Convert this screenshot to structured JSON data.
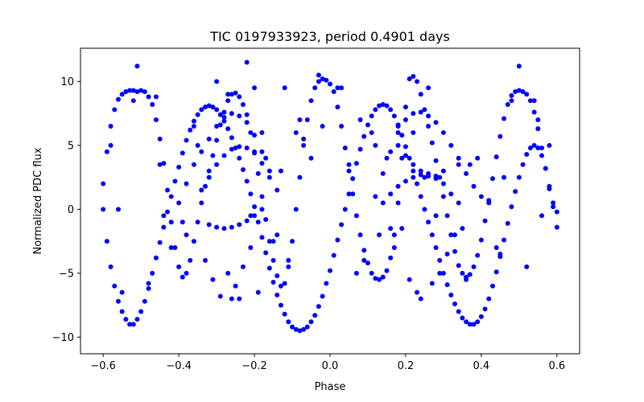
{
  "chart_data": {
    "type": "scatter",
    "title": "TIC 0197933923, period 0.4901 days",
    "xlabel": "Phase",
    "ylabel": "Normalized PDC flux",
    "xlim": [
      -0.66,
      0.66
    ],
    "ylim": [
      -11.3,
      12.6
    ],
    "xticks": [
      -0.6,
      -0.4,
      -0.2,
      0.0,
      0.2,
      0.4,
      0.6
    ],
    "xtick_labels": [
      "−0.6",
      "−0.4",
      "−0.2",
      "0.0",
      "0.2",
      "0.4",
      "0.6"
    ],
    "yticks": [
      -10,
      -5,
      0,
      5,
      10
    ],
    "ytick_labels": [
      "−10",
      "−5",
      "0",
      "5",
      "10"
    ],
    "grid": false,
    "marker_color": "#0000ff",
    "series": [
      {
        "x": [
          -0.6,
          -0.59,
          -0.58,
          -0.57,
          -0.56,
          -0.55,
          -0.54,
          -0.53,
          -0.52,
          -0.51,
          -0.5,
          -0.49,
          -0.48,
          -0.47,
          -0.46,
          -0.45,
          -0.44,
          -0.43,
          -0.42,
          -0.41,
          -0.4,
          -0.39,
          -0.38,
          -0.37,
          -0.36,
          -0.35,
          -0.34,
          -0.33,
          -0.32,
          -0.31,
          -0.3,
          -0.29,
          -0.28,
          -0.27,
          -0.26,
          -0.25,
          -0.24,
          -0.23,
          -0.22,
          -0.21,
          -0.2,
          -0.19,
          -0.18,
          -0.17,
          -0.16,
          -0.15,
          -0.14,
          -0.13,
          -0.12,
          -0.11,
          -0.1,
          -0.09,
          -0.08,
          -0.07,
          -0.06,
          -0.05,
          -0.04,
          -0.03,
          -0.02,
          -0.01,
          0.0,
          0.01,
          0.02,
          0.03,
          0.04,
          0.05,
          0.06,
          0.07,
          0.08,
          0.09,
          0.1,
          0.11,
          0.12,
          0.13,
          0.14,
          0.15,
          0.16,
          0.17,
          0.18,
          0.19,
          0.2,
          0.21,
          0.22,
          0.23,
          0.24,
          0.25,
          0.26,
          0.27,
          0.28,
          0.29,
          0.3,
          0.31,
          0.32,
          0.33,
          0.34,
          0.35,
          0.36,
          0.37,
          0.38,
          0.39,
          0.4,
          0.41,
          0.42,
          0.43,
          0.44,
          0.45,
          0.46,
          0.47,
          0.48,
          0.49,
          0.5,
          0.51,
          0.52,
          0.53,
          0.54,
          0.55,
          0.56,
          0.57,
          0.58,
          0.59,
          0.6
        ],
        "y": [
          2.0,
          4.5,
          6.5,
          7.8,
          8.6,
          9.0,
          9.2,
          9.3,
          9.3,
          9.2,
          9.3,
          9.2,
          8.8,
          8.2,
          7.0,
          5.5,
          3.6,
          1.5,
          -1.0,
          -3.0,
          -4.5,
          -5.3,
          -5.0,
          -4.0,
          -2.5,
          -1.0,
          0.5,
          1.8,
          3.0,
          4.2,
          5.4,
          6.6,
          7.6,
          8.5,
          9.0,
          9.1,
          8.8,
          8.2,
          7.4,
          6.0,
          4.5,
          2.8,
          1.0,
          -0.8,
          -2.5,
          -4.0,
          -5.2,
          -6.0,
          -5.8,
          -4.5,
          -2.5,
          0.0,
          2.5,
          5.0,
          7.0,
          8.5,
          9.5,
          10.0,
          10.2,
          10.1,
          9.8,
          9.2,
          8.0,
          6.5,
          4.8,
          3.0,
          1.2,
          -0.5,
          -2.0,
          -3.2,
          -4.2,
          -5.0,
          -5.4,
          -5.5,
          -5.3,
          -4.8,
          -3.8,
          -2.0,
          0.5,
          4.0,
          8.0,
          10.2,
          10.4,
          10.0,
          9.0,
          7.8,
          6.5,
          5.2,
          3.8,
          2.5,
          1.0,
          -0.5,
          -2.0,
          -3.3,
          -4.4,
          -5.0,
          -5.3,
          -5.1,
          -4.5,
          -3.6,
          -2.4,
          -0.9,
          0.7,
          2.4,
          4.1,
          5.7,
          7.1,
          8.2,
          8.9,
          9.2,
          9.3,
          9.2,
          9.0,
          8.5,
          7.6,
          6.3,
          4.8,
          3.2,
          1.6,
          0.5,
          -0.2
        ]
      },
      {
        "x": [
          -0.6,
          -0.59,
          -0.58,
          -0.57,
          -0.56,
          -0.55,
          -0.54,
          -0.53,
          -0.52,
          -0.51,
          -0.5,
          -0.49,
          -0.48,
          -0.47,
          -0.46,
          -0.45,
          -0.44,
          -0.43,
          -0.42,
          -0.41,
          -0.4,
          -0.39,
          -0.38,
          -0.37,
          -0.36,
          -0.35,
          -0.34,
          -0.33,
          -0.32,
          -0.31,
          -0.3,
          -0.29,
          -0.28,
          -0.27,
          -0.26,
          -0.25,
          -0.24,
          -0.23,
          -0.22,
          -0.21,
          -0.2,
          -0.19,
          -0.18,
          -0.17,
          -0.16,
          -0.15,
          -0.14,
          -0.13,
          -0.12,
          -0.11,
          -0.1,
          -0.09,
          -0.08,
          -0.07,
          -0.06,
          -0.05,
          -0.04,
          -0.03,
          -0.02,
          -0.01,
          0.0,
          0.01,
          0.02,
          0.03,
          0.04,
          0.05,
          0.06,
          0.07,
          0.08,
          0.09,
          0.1,
          0.11,
          0.12,
          0.13,
          0.14,
          0.15,
          0.16,
          0.17,
          0.18,
          0.19,
          0.2,
          0.21,
          0.22,
          0.23,
          0.24,
          0.25,
          0.26,
          0.27,
          0.28,
          0.29,
          0.3,
          0.31,
          0.32,
          0.33,
          0.34,
          0.35,
          0.36,
          0.37,
          0.38,
          0.39,
          0.4,
          0.41,
          0.42,
          0.43,
          0.44,
          0.45,
          0.46,
          0.47,
          0.48,
          0.49,
          0.5,
          0.51,
          0.52,
          0.53,
          0.54,
          0.55,
          0.56,
          0.57,
          0.58,
          0.59,
          0.6
        ],
        "y": [
          0.0,
          -2.5,
          -4.5,
          -6.0,
          -7.2,
          -8.0,
          -8.6,
          -9.0,
          -9.0,
          -8.6,
          -8.0,
          -7.2,
          -6.2,
          -5.0,
          -3.8,
          -2.6,
          -1.4,
          -0.2,
          1.0,
          2.2,
          3.3,
          4.4,
          5.4,
          6.2,
          6.9,
          7.4,
          7.8,
          8.0,
          8.1,
          8.0,
          7.8,
          7.4,
          6.9,
          6.3,
          5.6,
          4.8,
          4.0,
          3.1,
          2.2,
          1.2,
          0.2,
          -1.0,
          -2.2,
          -3.4,
          -4.6,
          -5.7,
          -6.7,
          -7.5,
          -8.2,
          -8.8,
          -9.2,
          -9.4,
          -9.5,
          -9.4,
          -9.2,
          -8.8,
          -8.3,
          -7.6,
          -6.8,
          -5.8,
          -4.8,
          -3.6,
          -2.4,
          -1.2,
          0.0,
          1.2,
          2.4,
          3.6,
          4.7,
          5.7,
          6.6,
          7.3,
          7.8,
          8.1,
          8.2,
          8.1,
          7.8,
          7.3,
          6.6,
          5.8,
          4.9,
          4.0,
          3.0,
          2.0,
          1.0,
          0.0,
          -1.0,
          -2.0,
          -3.0,
          -4.0,
          -5.0,
          -5.9,
          -6.7,
          -7.4,
          -8.0,
          -8.5,
          -8.8,
          -9.0,
          -9.0,
          -8.8,
          -8.4,
          -7.8,
          -7.0,
          -6.0,
          -4.9,
          -3.7,
          -2.4,
          -1.1,
          0.2,
          1.4,
          2.5,
          3.5,
          4.3,
          4.8,
          5.0,
          4.8,
          4.2,
          3.2,
          1.8,
          0.2,
          -1.4
        ]
      },
      {
        "x": [
          -0.4,
          -0.38,
          -0.36,
          -0.34,
          -0.32,
          -0.3,
          -0.28,
          -0.26,
          -0.24,
          -0.22,
          -0.2,
          -0.18,
          -0.16,
          -0.14,
          0.12,
          0.14,
          0.16,
          0.18,
          0.2,
          0.22,
          0.24,
          0.26,
          0.28,
          0.3,
          0.32,
          0.34,
          0.36,
          0.38,
          0.4
        ],
        "y": [
          0.5,
          2.0,
          3.5,
          4.5,
          5.5,
          6.5,
          7.2,
          7.5,
          7.3,
          6.8,
          5.8,
          4.5,
          3.0,
          1.5,
          1.0,
          2.8,
          4.5,
          6.0,
          7.0,
          7.5,
          7.6,
          7.3,
          6.8,
          6.0,
          5.0,
          4.0,
          2.8,
          1.8,
          1.0
        ]
      },
      {
        "x": [
          -0.34,
          -0.32,
          -0.3,
          -0.28,
          -0.26,
          -0.24,
          -0.22,
          -0.2,
          -0.18,
          -0.16,
          0.14,
          0.16,
          0.18,
          0.2,
          0.22,
          0.24,
          0.26,
          0.28,
          0.3,
          0.32,
          0.34
        ],
        "y": [
          1.5,
          2.5,
          3.5,
          4.2,
          4.7,
          4.9,
          4.8,
          4.4,
          3.6,
          2.5,
          0.5,
          1.2,
          1.8,
          2.2,
          2.5,
          2.7,
          2.8,
          2.6,
          2.0,
          1.2,
          0.5
        ]
      },
      {
        "x": [
          -0.32,
          -0.3,
          -0.28,
          -0.26,
          -0.24,
          -0.22,
          -0.2,
          -0.18,
          0.18,
          0.2,
          0.22,
          0.24,
          0.26,
          0.28
        ],
        "y": [
          -1.2,
          -1.4,
          -1.5,
          -1.4,
          -1.2,
          -0.9,
          -0.5,
          0.0,
          5.0,
          4.2,
          3.5,
          3.0,
          2.6,
          2.4
        ]
      },
      {
        "x": [
          -0.58,
          -0.55,
          -0.52,
          -0.48,
          -0.45,
          -0.42,
          -0.38,
          -0.36,
          -0.33,
          -0.31,
          -0.29,
          -0.27,
          -0.25,
          -0.23,
          -0.21,
          -0.19,
          -0.17,
          -0.15,
          -0.13,
          -0.11,
          -0.09,
          -0.07,
          -0.05,
          -0.03,
          0.03,
          0.05,
          0.07,
          0.09,
          0.11,
          0.13,
          0.15,
          0.17,
          0.19,
          0.21,
          0.23,
          0.25,
          0.27,
          0.29,
          0.31,
          0.33,
          0.35,
          0.37,
          0.39,
          0.42,
          0.45,
          0.48,
          0.52,
          0.55,
          0.58,
          -0.51,
          -0.46,
          -0.35,
          -0.3,
          -0.27,
          -0.22,
          -0.2,
          -0.18,
          -0.12,
          -0.08,
          -0.02,
          0.02,
          0.08,
          0.12,
          0.18,
          0.22,
          0.26,
          0.3,
          0.34,
          0.44,
          0.5,
          0.54,
          -0.56,
          -0.44,
          -0.39,
          -0.26,
          -0.24,
          -0.21,
          -0.14,
          0.16,
          0.24,
          0.28,
          0.36,
          0.46,
          0.56
        ],
        "y": [
          5.0,
          -6.5,
          8.5,
          -5.8,
          3.5,
          -3.0,
          -2.0,
          6.5,
          -4.0,
          -5.5,
          -6.8,
          -5.0,
          -6.0,
          -4.5,
          -3.0,
          -6.5,
          4.0,
          -2.5,
          3.0,
          -4.0,
          6.0,
          5.5,
          4.0,
          10.5,
          9.5,
          3.5,
          -5.0,
          -4.0,
          6.0,
          -2.0,
          4.0,
          -3.0,
          -1.5,
          -5.5,
          -6.5,
          2.5,
          -5.8,
          -5.0,
          -3.5,
          -2.0,
          -1.5,
          3.5,
          4.0,
          0.5,
          -3.5,
          8.5,
          -4.5,
          7.0,
          5.0,
          11.2,
          8.8,
          5.0,
          10.0,
          9.0,
          11.5,
          9.5,
          6.0,
          9.5,
          7.0,
          6.5,
          9.5,
          7.0,
          5.0,
          6.5,
          6.0,
          9.5,
          3.0,
          3.5,
          -3.0,
          11.2,
          8.5,
          0.0,
          -0.5,
          -1.0,
          -7.0,
          -7.0,
          -0.5,
          -2.0,
          -1.5,
          -7.0,
          -0.5,
          -5.5,
          2.5,
          -0.5
        ]
      }
    ]
  }
}
